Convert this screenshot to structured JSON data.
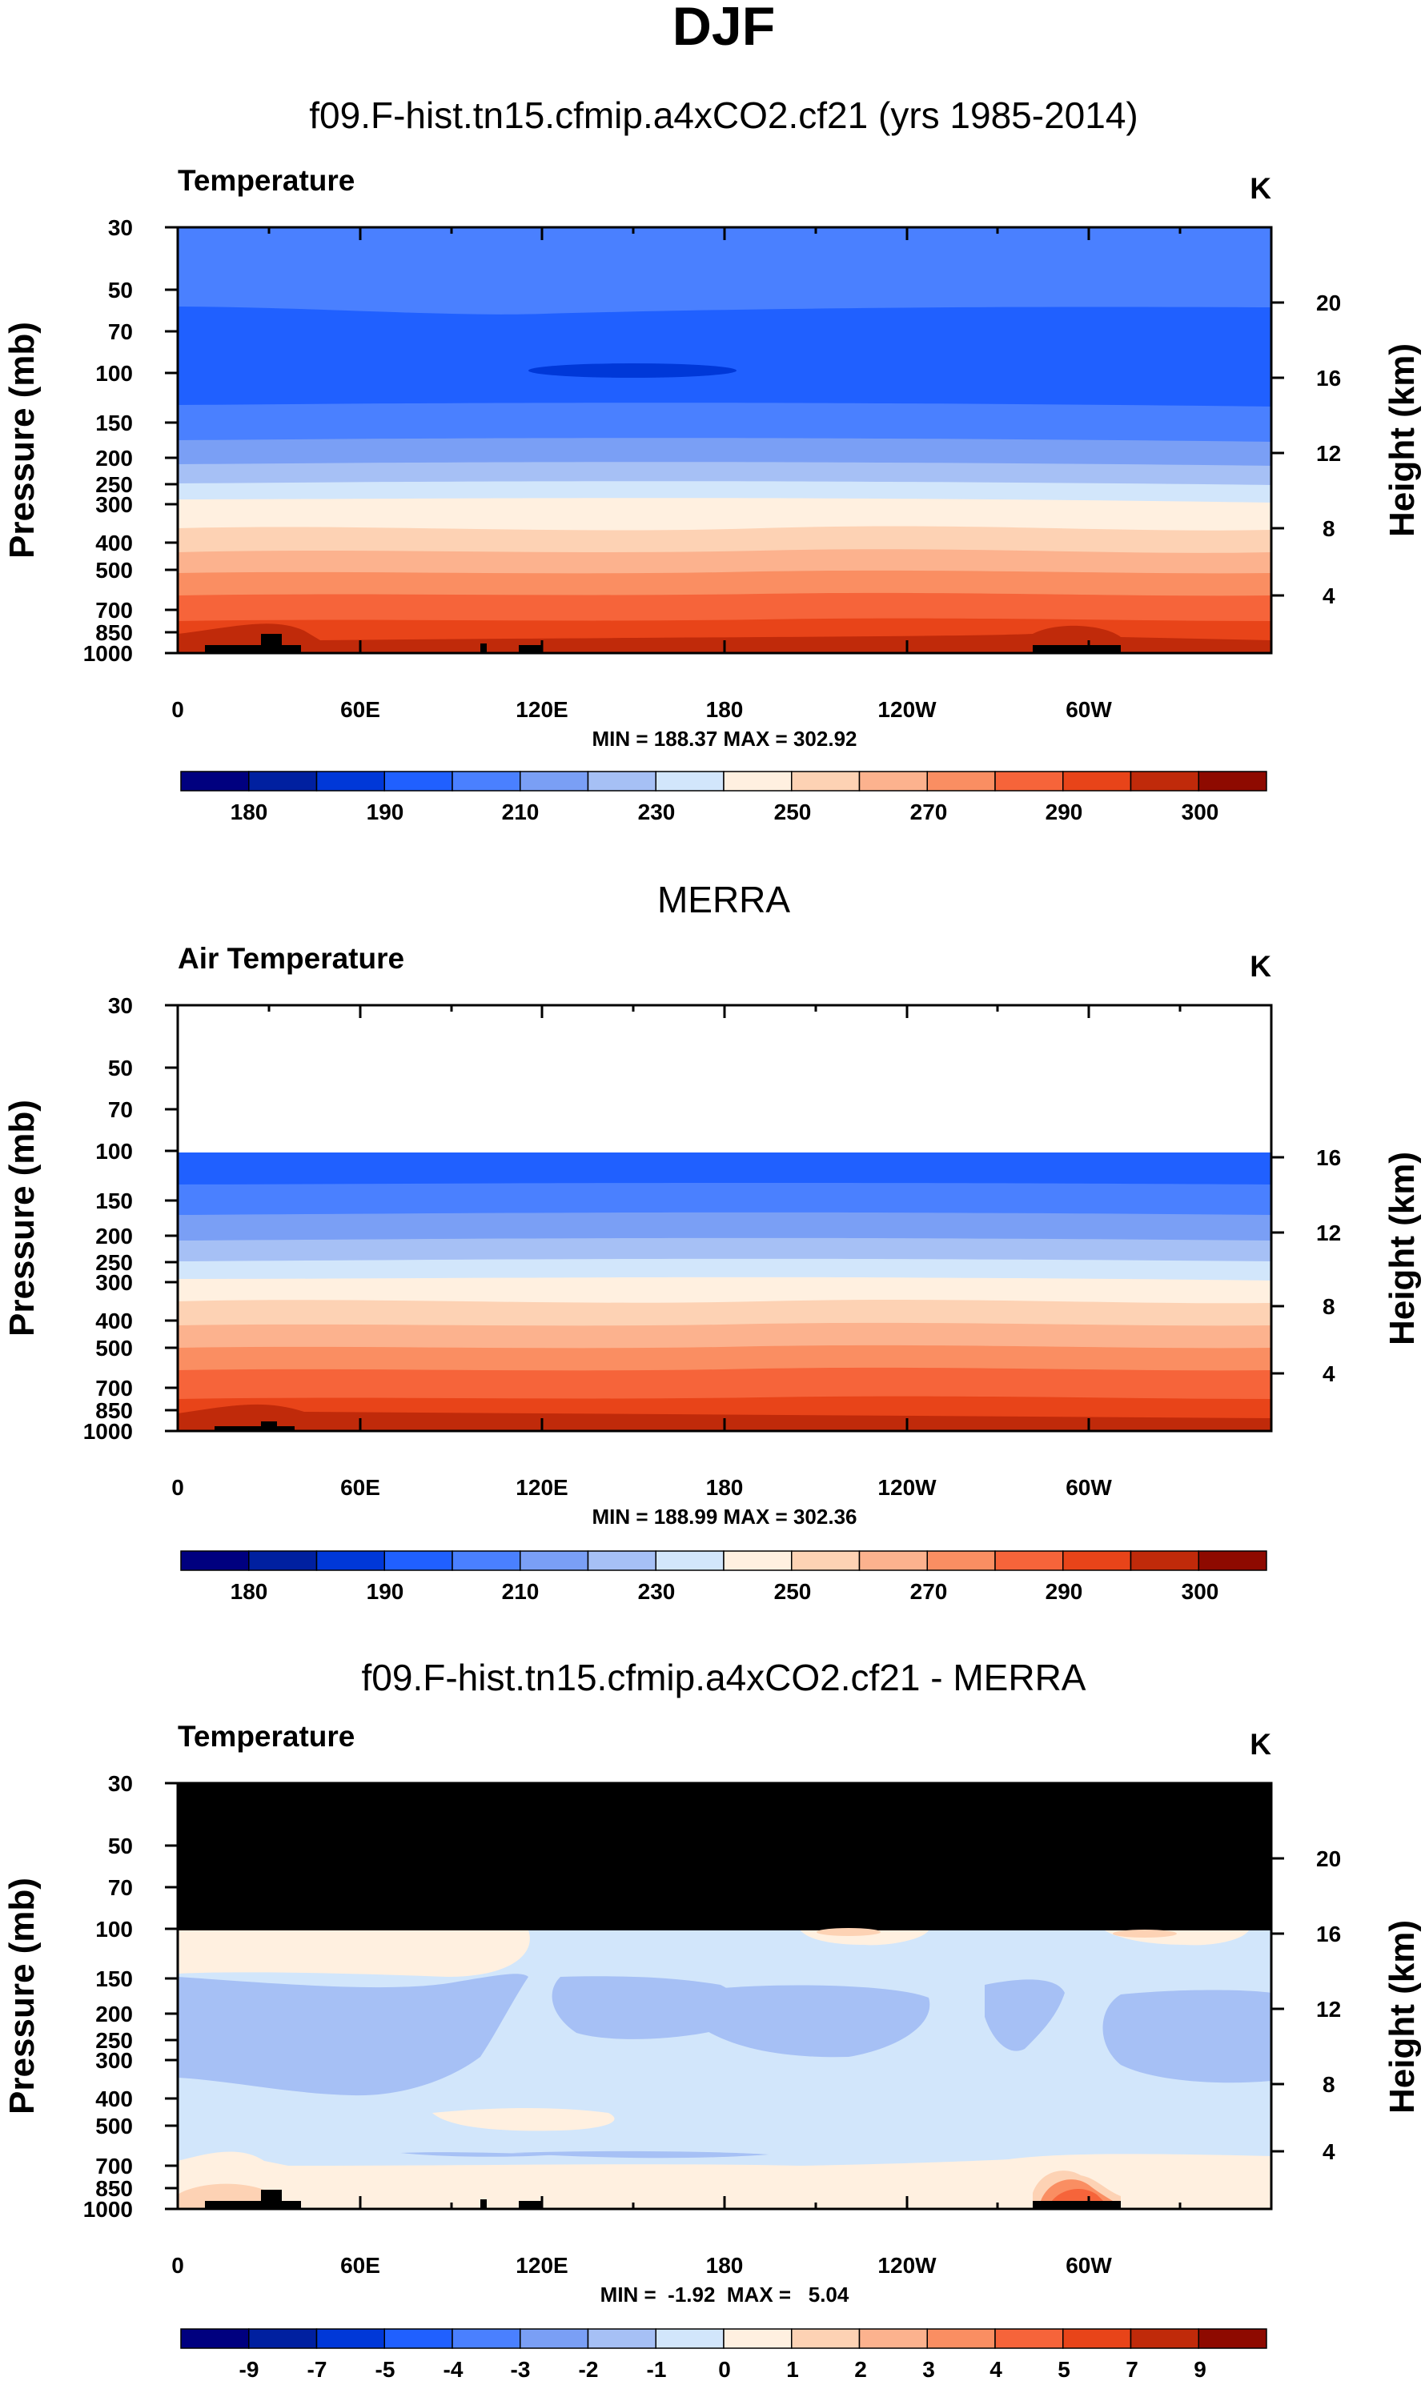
{
  "page": {
    "title": "DJF"
  },
  "colorbar_temp": {
    "colors": [
      "#00007f",
      "#0020a0",
      "#0038d8",
      "#2060ff",
      "#4a80ff",
      "#7a9ff5",
      "#a6c0f5",
      "#d2e6fb",
      "#fff0e0",
      "#fdd2b4",
      "#fcb28e",
      "#fa8e62",
      "#f6643a",
      "#e84419",
      "#c02a0a",
      "#8e0a00"
    ],
    "labels": [
      "180",
      "190",
      "210",
      "230",
      "250",
      "270",
      "290",
      "300"
    ]
  },
  "colorbar_diff": {
    "colors": [
      "#00007f",
      "#0020a0",
      "#0038d8",
      "#2060ff",
      "#4a80ff",
      "#7a9ff5",
      "#a6c0f5",
      "#d2e6fb",
      "#fff0e0",
      "#fdd2b4",
      "#fcb28e",
      "#fa8e62",
      "#f6643a",
      "#e84419",
      "#c02a0a",
      "#8e0a00"
    ],
    "labels": [
      "-9",
      "-7",
      "-5",
      "-4",
      "-3",
      "-2",
      "-1",
      "0",
      "1",
      "2",
      "3",
      "4",
      "5",
      "7",
      "9"
    ]
  },
  "chart_data": [
    {
      "type": "heatmap",
      "title": "f09.F-hist.tn15.cfmip.a4xCO2.cf21 (yrs 1985-2014)",
      "variable": "Temperature",
      "units": "K",
      "ylabel": "Pressure (mb)",
      "y2label": "Height (km)",
      "x_ticks": [
        "0",
        "60E",
        "120E",
        "180",
        "120W",
        "60W"
      ],
      "y_ticks": [
        "30",
        "50",
        "70",
        "100",
        "150",
        "200",
        "250",
        "300",
        "400",
        "500",
        "700",
        "850",
        "1000"
      ],
      "y2_ticks": [
        "20",
        "16",
        "12",
        "8",
        "4"
      ],
      "stats": "MIN = 188.37  MAX = 302.92",
      "min": 188.37,
      "max": 302.92
    },
    {
      "type": "heatmap",
      "title": "MERRA",
      "variable": "Air Temperature",
      "units": "K",
      "ylabel": "Pressure (mb)",
      "y2label": "Height (km)",
      "x_ticks": [
        "0",
        "60E",
        "120E",
        "180",
        "120W",
        "60W"
      ],
      "y_ticks": [
        "30",
        "50",
        "70",
        "100",
        "150",
        "200",
        "250",
        "300",
        "400",
        "500",
        "700",
        "850",
        "1000"
      ],
      "y2_ticks": [
        "16",
        "12",
        "8",
        "4"
      ],
      "stats": "MIN = 188.99  MAX = 302.36",
      "min": 188.99,
      "max": 302.36
    },
    {
      "type": "heatmap",
      "title": "f09.F-hist.tn15.cfmip.a4xCO2.cf21 - MERRA",
      "variable": "Temperature",
      "units": "K",
      "ylabel": "Pressure (mb)",
      "y2label": "Height (km)",
      "x_ticks": [
        "0",
        "60E",
        "120E",
        "180",
        "120W",
        "60W"
      ],
      "y_ticks": [
        "30",
        "50",
        "70",
        "100",
        "150",
        "200",
        "250",
        "300",
        "400",
        "500",
        "700",
        "850",
        "1000"
      ],
      "y2_ticks": [
        "20",
        "16",
        "12",
        "8",
        "4"
      ],
      "stats": "MIN =  -1.92  MAX =   5.04",
      "min": -1.92,
      "max": 5.04
    }
  ]
}
